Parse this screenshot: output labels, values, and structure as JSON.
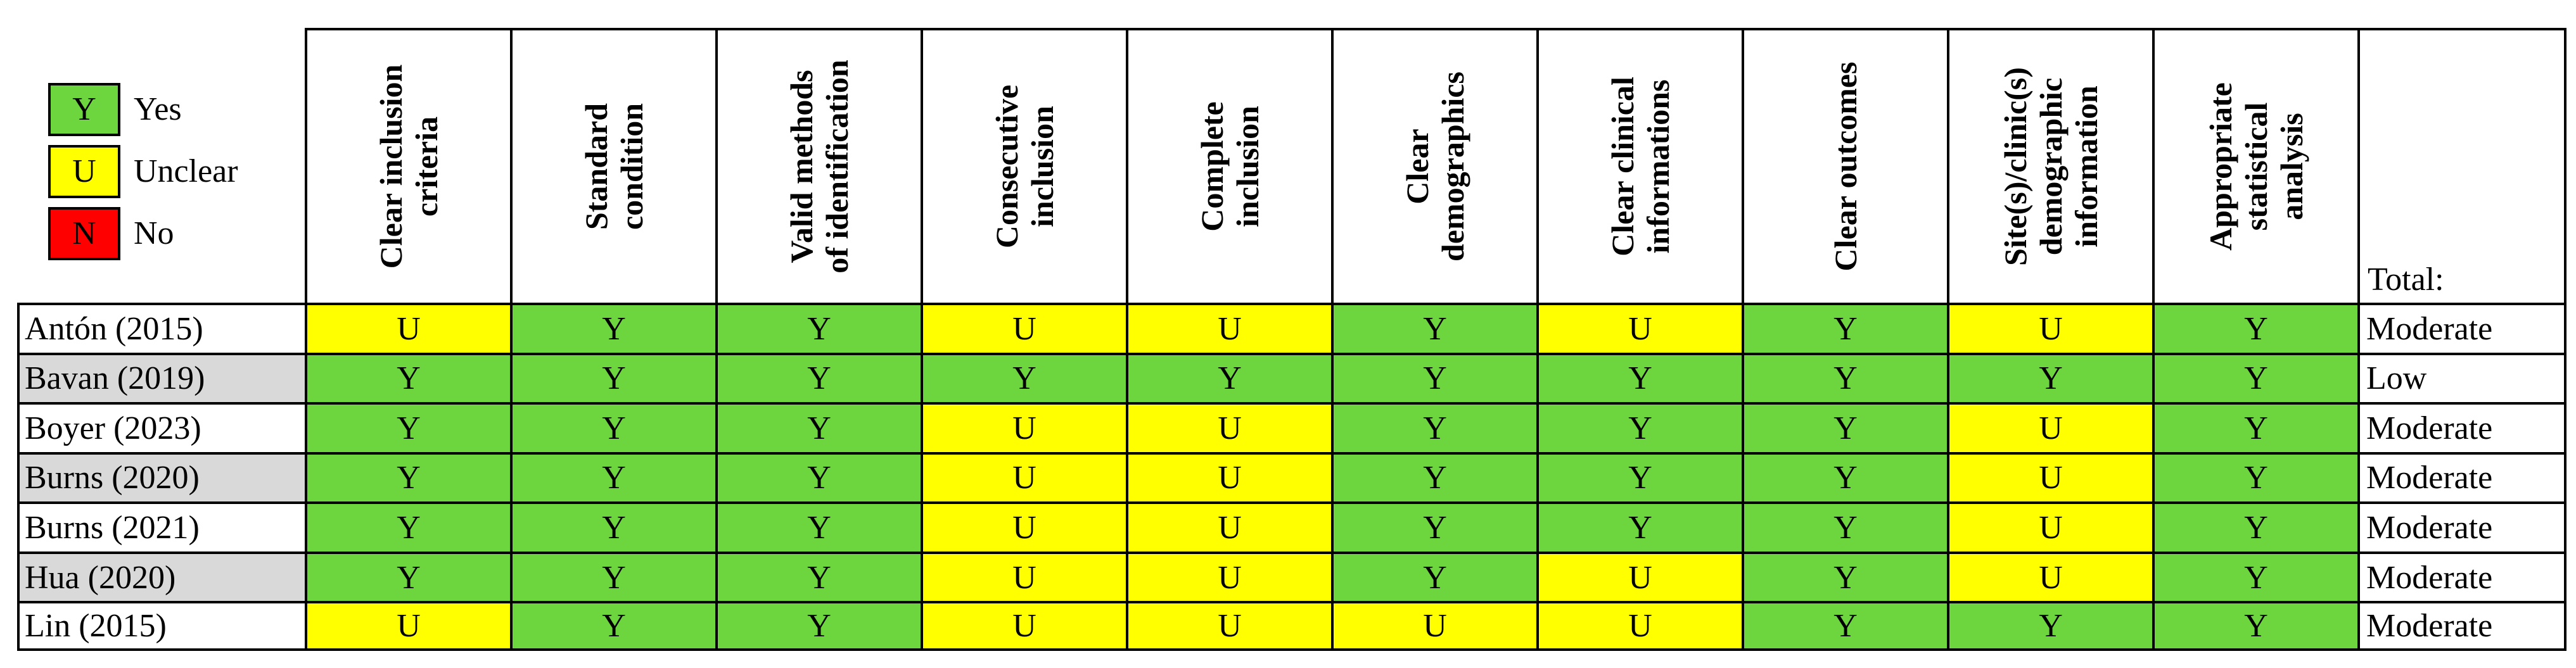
{
  "legend": [
    {
      "code": "Y",
      "label": "Yes",
      "color": "#6dd63f"
    },
    {
      "code": "U",
      "label": "Unclear",
      "color": "#ffff00"
    },
    {
      "code": "N",
      "label": "No",
      "color": "#ff0000"
    }
  ],
  "colors": {
    "Y": "#6dd63f",
    "U": "#ffff00",
    "N": "#ff0000",
    "shaded_row": "#d9d9d9"
  },
  "columns": [
    {
      "lines": [
        "Clear inclusion",
        "criteria"
      ]
    },
    {
      "lines": [
        "Standard",
        "condition"
      ]
    },
    {
      "lines": [
        "Valid methods",
        "of identification"
      ]
    },
    {
      "lines": [
        "Consecutive",
        "inclusion"
      ]
    },
    {
      "lines": [
        "Complete",
        "inclusion"
      ]
    },
    {
      "lines": [
        "Clear",
        "demographics"
      ]
    },
    {
      "lines": [
        "Clear clinical",
        "informations"
      ]
    },
    {
      "lines": [
        "Clear outcomes"
      ]
    },
    {
      "lines": [
        "Site(s)/clinic(s)",
        "demographic",
        "information"
      ]
    },
    {
      "lines": [
        "Appropriate",
        "statistical",
        "analysis"
      ]
    }
  ],
  "total_header": "Total:",
  "rows": [
    {
      "study": "Antón (2015)",
      "shaded": false,
      "ratings": [
        "U",
        "Y",
        "Y",
        "U",
        "U",
        "Y",
        "U",
        "Y",
        "U",
        "Y"
      ],
      "total": "Moderate"
    },
    {
      "study": "Bavan (2019)",
      "shaded": true,
      "ratings": [
        "Y",
        "Y",
        "Y",
        "Y",
        "Y",
        "Y",
        "Y",
        "Y",
        "Y",
        "Y"
      ],
      "total": "Low"
    },
    {
      "study": "Boyer (2023)",
      "shaded": false,
      "ratings": [
        "Y",
        "Y",
        "Y",
        "U",
        "U",
        "Y",
        "Y",
        "Y",
        "U",
        "Y"
      ],
      "total": "Moderate"
    },
    {
      "study": "Burns (2020)",
      "shaded": true,
      "ratings": [
        "Y",
        "Y",
        "Y",
        "U",
        "U",
        "Y",
        "Y",
        "Y",
        "U",
        "Y"
      ],
      "total": "Moderate"
    },
    {
      "study": "Burns (2021)",
      "shaded": false,
      "ratings": [
        "Y",
        "Y",
        "Y",
        "U",
        "U",
        "Y",
        "Y",
        "Y",
        "U",
        "Y"
      ],
      "total": "Moderate"
    },
    {
      "study": "Hua (2020)",
      "shaded": true,
      "ratings": [
        "Y",
        "Y",
        "Y",
        "U",
        "U",
        "Y",
        "U",
        "Y",
        "U",
        "Y"
      ],
      "total": "Moderate"
    },
    {
      "study": "Lin (2015)",
      "shaded": false,
      "ratings": [
        "U",
        "Y",
        "Y",
        "U",
        "U",
        "U",
        "U",
        "Y",
        "Y",
        "Y"
      ],
      "total": "Moderate"
    }
  ]
}
